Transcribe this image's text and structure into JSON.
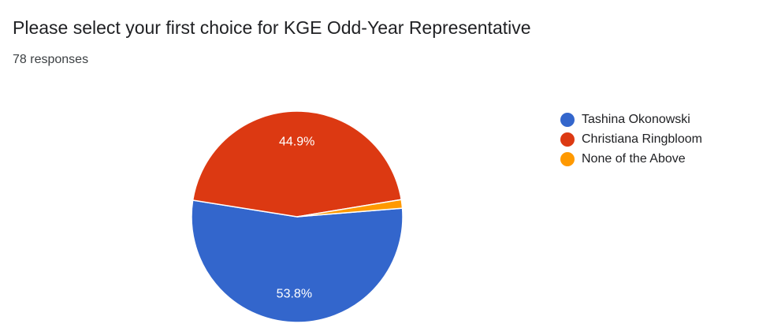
{
  "header": {
    "title": "Please select your first choice for KGE Odd-Year Representative",
    "responses": "78 responses"
  },
  "chart_data": {
    "type": "pie",
    "slices": [
      {
        "name": "Tashina Okonowski",
        "value": 53.8,
        "label": "53.8%",
        "color": "#3366cc"
      },
      {
        "name": "Christiana Ringbloom",
        "value": 44.9,
        "label": "44.9%",
        "color": "#dc3912"
      },
      {
        "name": "None of the Above",
        "value": 1.3,
        "label": "",
        "color": "#ff9900"
      }
    ],
    "legend_position": "right"
  }
}
